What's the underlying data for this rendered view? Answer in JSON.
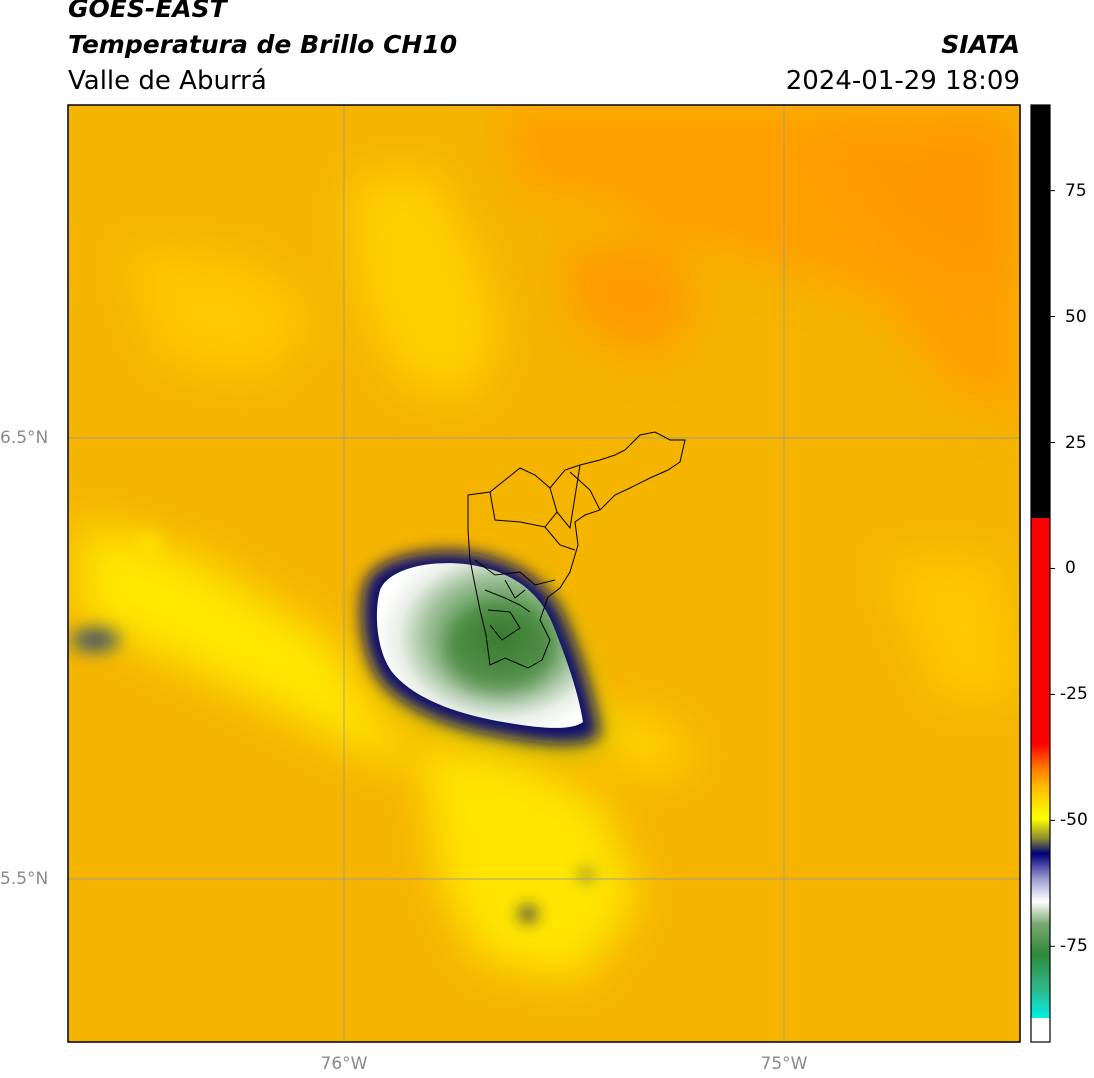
{
  "header": {
    "satellite": "GOES-EAST",
    "product": "Temperatura de Brillo CH10",
    "region": "Valle de Aburrá",
    "agency": "SIATA",
    "datetime": "2024-01-29 18:09"
  },
  "map": {
    "lat_labels": [
      "6.5°N",
      "5.5°N"
    ],
    "lon_labels": [
      "76°W",
      "75°W"
    ],
    "colors": {
      "background_warm": "#f5b400",
      "background_orange": "#ff9e00",
      "background_yellow": "#ffe800",
      "cold_core_green": "#3a7d2c",
      "cloud_white": "#ffffff",
      "cloud_edge_navy": "#0b0b70",
      "grid": "#9a9a9a",
      "boundary": "#000000"
    }
  },
  "colorbar": {
    "ticks": [
      "75",
      "50",
      "25",
      "0",
      "-25",
      "-50",
      "-75"
    ],
    "tick_values": [
      75,
      50,
      25,
      0,
      -25,
      -50,
      -75
    ],
    "range": [
      -94,
      92
    ]
  }
}
